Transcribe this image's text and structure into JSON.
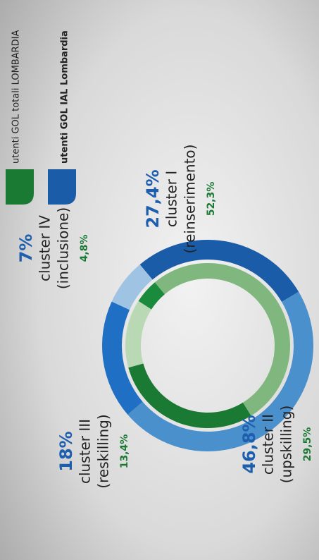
{
  "chart_data": {
    "type": "donut",
    "categories": [
      "cluster I",
      "cluster II",
      "cluster III",
      "cluster IV"
    ],
    "descriptions": [
      "(reinserimento)",
      "(upskilling)",
      "(reskilling)",
      "(inclusione)"
    ],
    "series": [
      {
        "name": "utenti GOL IAL Lombardia",
        "color": "#1a5ca8",
        "colors": [
          "#1a5ca8",
          "#4a90cc",
          "#1f6fc4",
          "#9fc3e3"
        ],
        "values": [
          27.4,
          46.8,
          18,
          7
        ],
        "value_labels": [
          "27,4%",
          "46,8%",
          "18%",
          "7%"
        ]
      },
      {
        "name": "utenti GOL totali LOMBARDIA",
        "color": "#1a7a34",
        "colors": [
          "#7fb77e",
          "#1a7a34",
          "#b9d9b5",
          "#1a8a3c"
        ],
        "values": [
          52.3,
          29.5,
          13.4,
          4.8
        ],
        "value_labels": [
          "52,3%",
          "29,5%",
          "13,4%",
          "4,8%"
        ]
      }
    ]
  }
}
